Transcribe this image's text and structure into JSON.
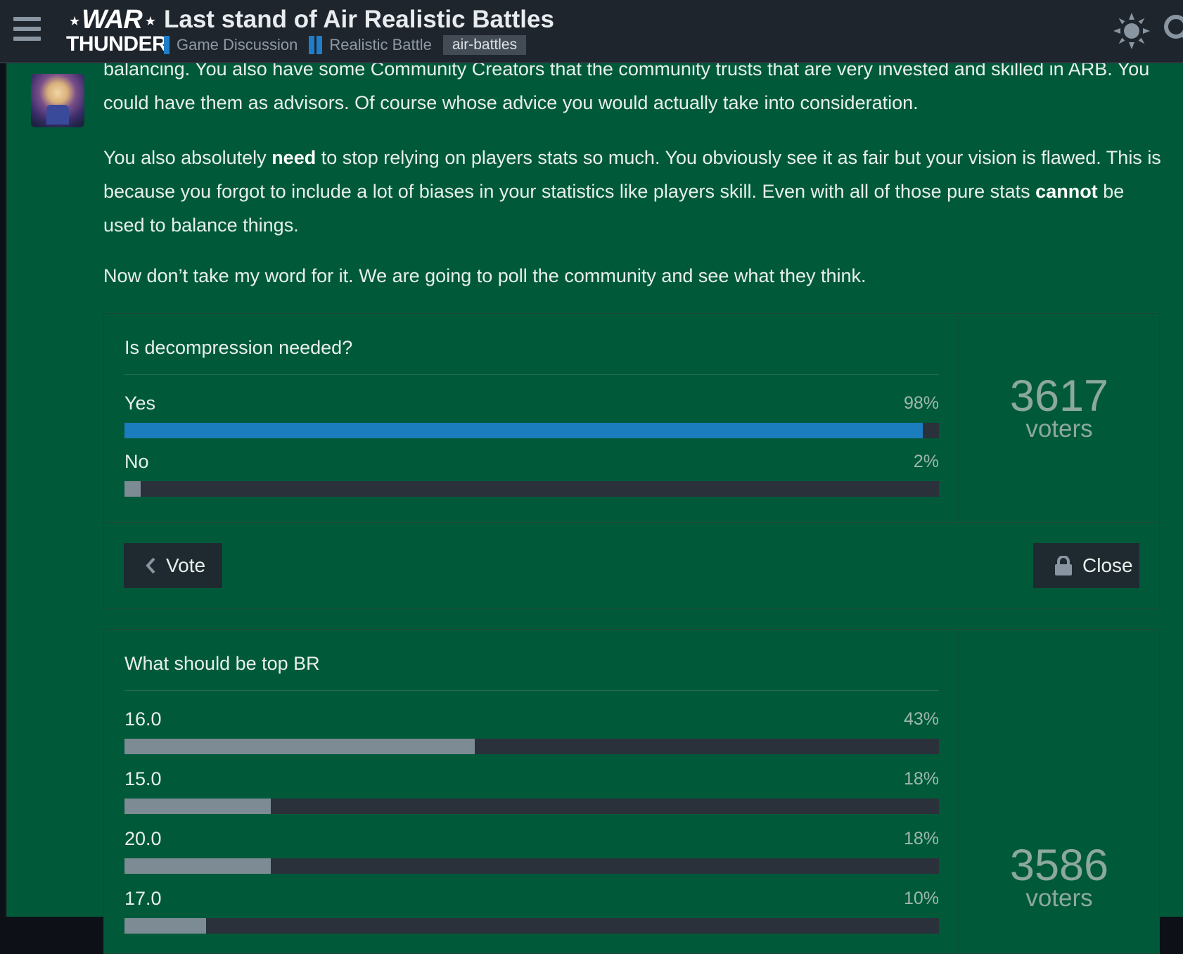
{
  "header": {
    "logo_top": "WAR",
    "logo_bottom": "THUNDER",
    "title": "Last stand of Air Realistic Battles",
    "breadcrumbs": [
      "Game Discussion",
      "Realistic Battle"
    ],
    "tag": "air-battles",
    "icons": [
      "hamburger-icon",
      "sun-icon",
      "search-icon"
    ]
  },
  "post": {
    "p1": "balancing. You also have some Community Creators that the community trusts that are very invested and skilled in ARB. You could have them as advisors. Of course whose advice you would actually take into consideration.",
    "p2a": "You also absolutely ",
    "p2b": "need",
    "p2c": " to stop relying on players stats so much. You obviously see it as fair but your vision is flawed. This is because you forgot to include a lot of biases in your statistics like players skill. Even with all of those pure stats ",
    "p2d": "cannot",
    "p2e": " be used to balance things.",
    "p3": "Now don’t take my word for it. We are going to poll the community and see what they think."
  },
  "polls": [
    {
      "question": "Is decompression needed?",
      "options": [
        {
          "label": "Yes",
          "pct": "98%",
          "value": 98
        },
        {
          "label": "No",
          "pct": "2%",
          "value": 2
        }
      ],
      "voters": "3617",
      "voters_label": "voters",
      "vote_label": "Vote",
      "close_label": "Close"
    },
    {
      "question": "What should be top BR",
      "options": [
        {
          "label": "16.0",
          "pct": "43%",
          "value": 43
        },
        {
          "label": "15.0",
          "pct": "18%",
          "value": 18
        },
        {
          "label": "20.0",
          "pct": "18%",
          "value": 18
        },
        {
          "label": "17.0",
          "pct": "10%",
          "value": 10
        }
      ],
      "voters": "3586",
      "voters_label": "voters"
    }
  ],
  "colors": {
    "post_bg": "#005a3a",
    "header_bg": "#1f252d",
    "accent_blue": "#1b7cbe",
    "bar_track": "#2a313a",
    "bar_fill": "#7d8b95"
  }
}
